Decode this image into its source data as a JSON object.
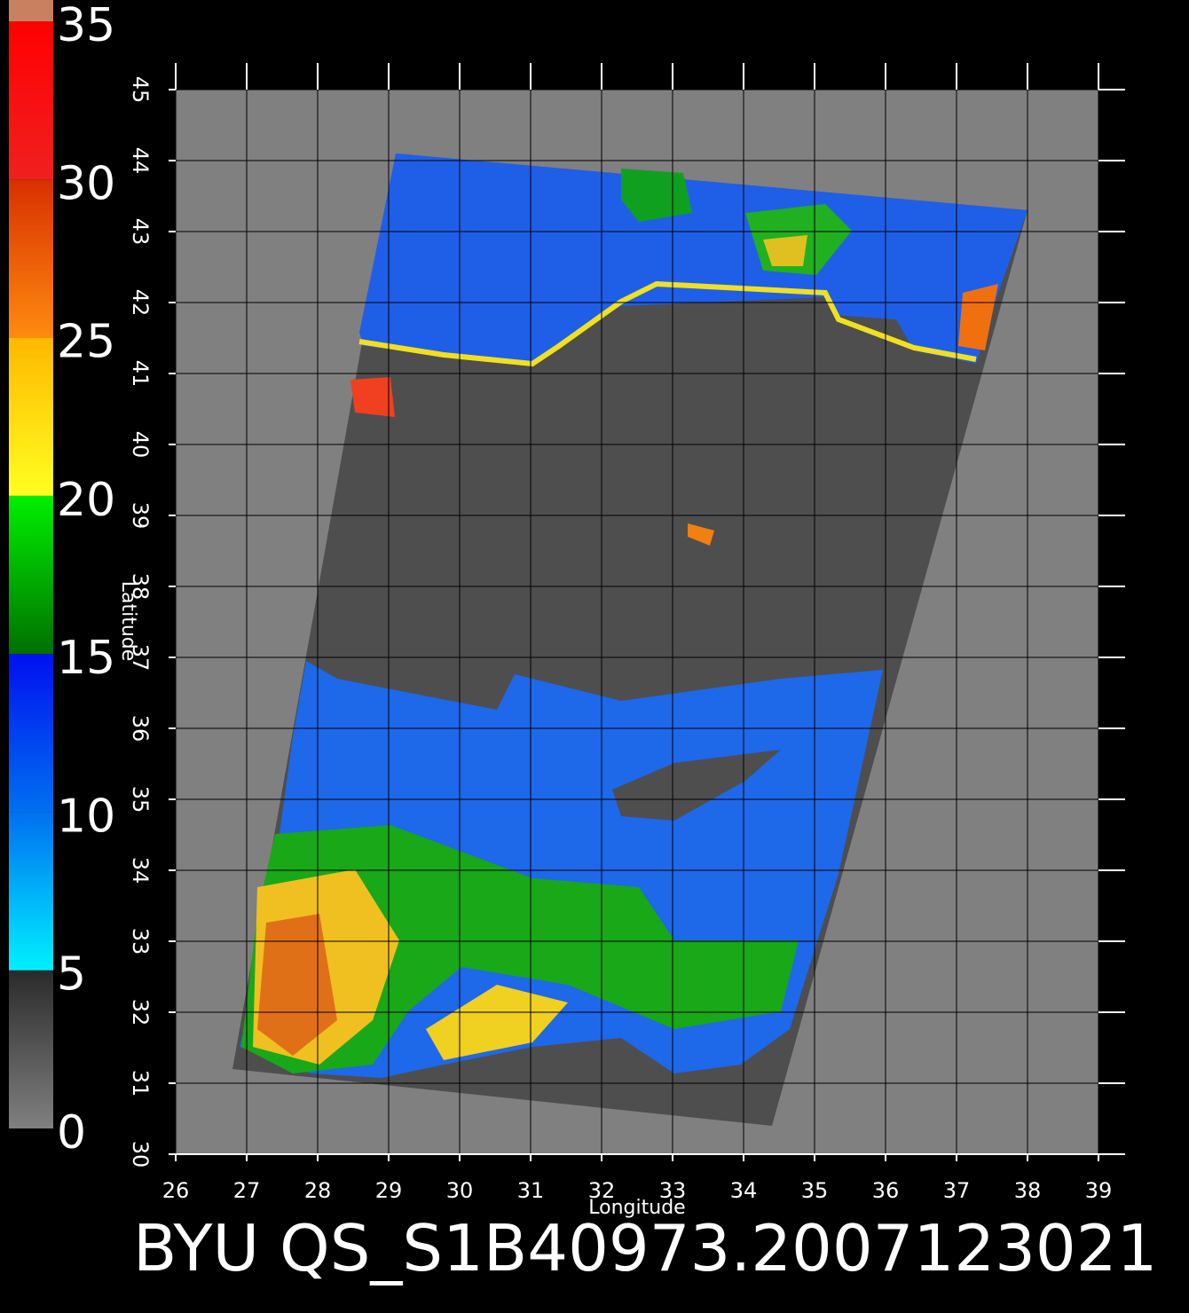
{
  "colorbar": {
    "ticks": [
      0,
      5,
      10,
      15,
      20,
      25,
      30,
      35
    ],
    "lim": [
      0,
      35
    ]
  },
  "map": {
    "xlabel": "Longitude",
    "ylabel": "Latitude",
    "xlim": [
      26,
      39
    ],
    "ylim": [
      30,
      45
    ],
    "xticks": [
      26,
      27,
      28,
      29,
      30,
      31,
      32,
      33,
      34,
      35,
      36,
      37,
      38,
      39
    ],
    "yticks": [
      30,
      31,
      32,
      33,
      34,
      35,
      36,
      37,
      38,
      39,
      40,
      41,
      42,
      43,
      44,
      45
    ]
  },
  "caption": "BYU QS_S1B40973.2007123021"
}
